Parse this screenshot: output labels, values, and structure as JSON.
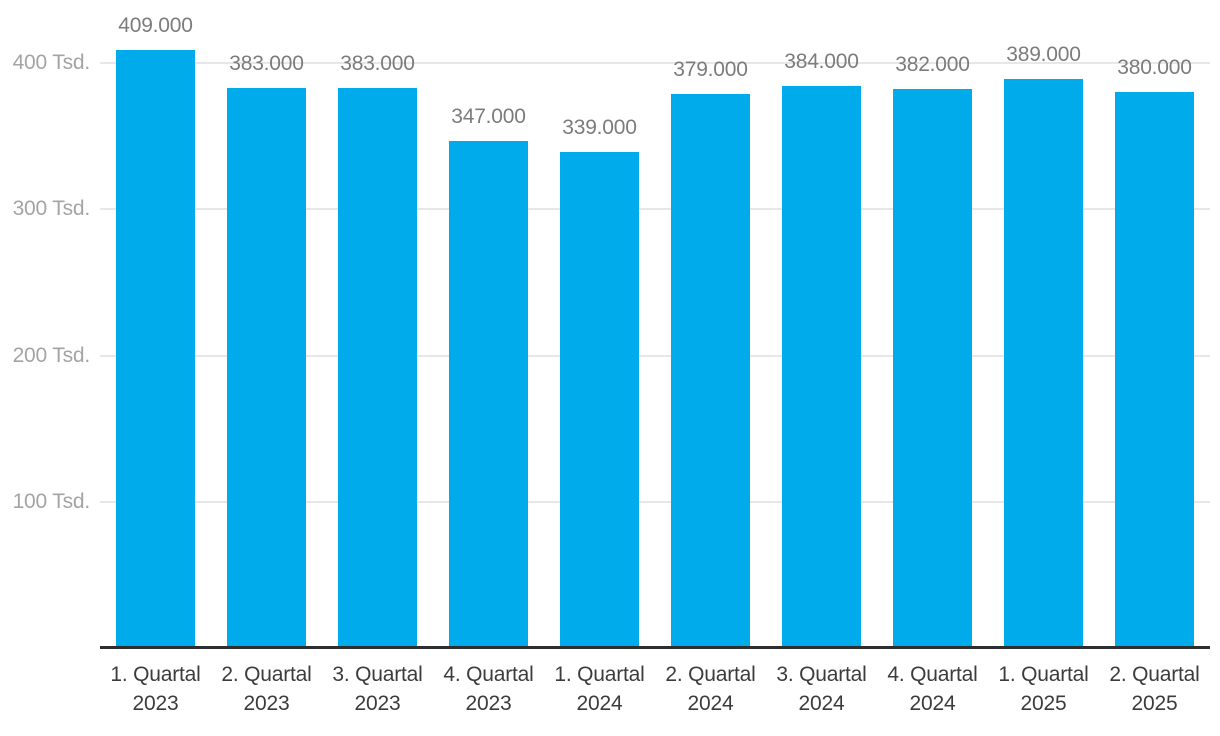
{
  "chart_data": {
    "type": "bar",
    "title": "",
    "xlabel": "",
    "ylabel": "",
    "categories": [
      "1. Quartal 2023",
      "2. Quartal 2023",
      "3. Quartal 2023",
      "4. Quartal 2023",
      "1. Quartal 2024",
      "2. Quartal 2024",
      "3. Quartal 2024",
      "4. Quartal 2024",
      "1. Quartal 2025",
      "2. Quartal 2025"
    ],
    "categories_lines": [
      [
        "1. Quartal",
        "2023"
      ],
      [
        "2. Quartal",
        "2023"
      ],
      [
        "3. Quartal",
        "2023"
      ],
      [
        "4. Quartal",
        "2023"
      ],
      [
        "1. Quartal",
        "2024"
      ],
      [
        "2. Quartal",
        "2024"
      ],
      [
        "3. Quartal",
        "2024"
      ],
      [
        "4. Quartal",
        "2024"
      ],
      [
        "1. Quartal",
        "2025"
      ],
      [
        "2. Quartal",
        "2025"
      ]
    ],
    "values": [
      409000,
      383000,
      383000,
      347000,
      339000,
      379000,
      384000,
      382000,
      389000,
      380000
    ],
    "value_labels": [
      "409.000",
      "383.000",
      "383.000",
      "347.000",
      "339.000",
      "379.000",
      "384.000",
      "382.000",
      "389.000",
      "380.000"
    ],
    "y_ticks": [
      {
        "value": 400000,
        "label": "400 Tsd."
      },
      {
        "value": 300000,
        "label": "300 Tsd."
      },
      {
        "value": 200000,
        "label": "200 Tsd."
      },
      {
        "value": 100000,
        "label": "100 Tsd."
      }
    ],
    "ylim": [
      0,
      443000
    ],
    "grid": "horizontal",
    "legend": "none",
    "colors": {
      "bar": "#00abec",
      "gridline": "#e7e7e7",
      "axis_line": "#2e2e2e",
      "y_tick_text": "#a4a4a4",
      "value_label_text": "#7c7c7c",
      "x_label_text": "#3c3c3c",
      "background": "#ffffff"
    }
  }
}
